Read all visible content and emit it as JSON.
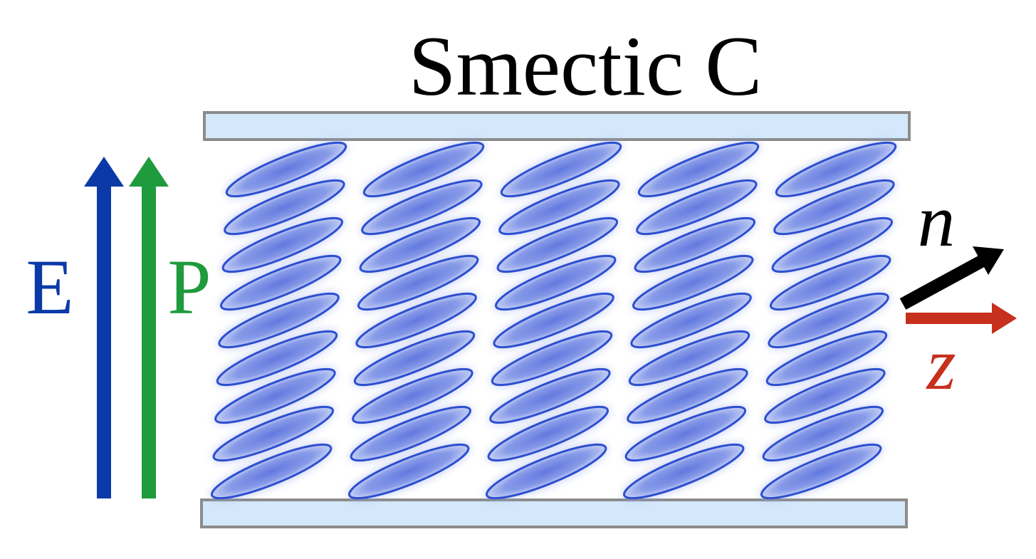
{
  "title": "Smectic C",
  "labels": {
    "field": "E",
    "polarization": "P",
    "director": "n",
    "layer_normal": "z"
  },
  "colors": {
    "field": "#0b3aa8",
    "polarization": "#1f9a3c",
    "director": "#000000",
    "layer_normal": "#c6301d",
    "plate_fill": "#d4e8fb",
    "plate_stroke": "#8c8c8c",
    "molecule_fill": "#6f86e3",
    "molecule_stroke": "#2d4fcf"
  },
  "molecules": {
    "layers": 5,
    "per_layer": 9
  }
}
